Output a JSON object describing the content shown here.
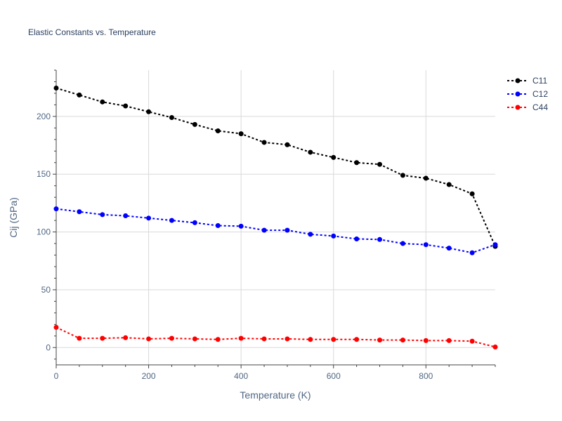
{
  "chart_data": {
    "type": "line",
    "title": "Elastic Constants vs. Temperature",
    "xlabel": "Temperature (K)",
    "ylabel": "Cij (GPa)",
    "xlim": [
      0,
      950
    ],
    "ylim": [
      -15,
      240
    ],
    "xticks": [
      0,
      200,
      400,
      600,
      800
    ],
    "yticks": [
      0,
      50,
      100,
      150,
      200
    ],
    "grid": true,
    "legend_position": "top-right",
    "x": [
      0,
      50,
      100,
      150,
      200,
      250,
      300,
      350,
      400,
      450,
      500,
      550,
      600,
      650,
      700,
      750,
      800,
      850,
      900,
      950
    ],
    "series": [
      {
        "name": "C11",
        "color": "#000000",
        "values": [
          224.5,
          218.5,
          212.5,
          209,
          204,
          199,
          193,
          187.5,
          185,
          177.5,
          175.5,
          169,
          164.5,
          160,
          158.5,
          149,
          146.5,
          141,
          133,
          87.5
        ]
      },
      {
        "name": "C12",
        "color": "#0000ff",
        "values": [
          120,
          117.5,
          115,
          114,
          112,
          110,
          108,
          105.5,
          105,
          101.5,
          101.5,
          98,
          96.5,
          94,
          93.5,
          90,
          89,
          86,
          82,
          89
        ]
      },
      {
        "name": "C44",
        "color": "#ff0000",
        "values": [
          17.5,
          8,
          8,
          8.5,
          7.5,
          8,
          7.5,
          7,
          8,
          7.5,
          7.5,
          7,
          7,
          7,
          6.5,
          6.5,
          6,
          6,
          5.5,
          0.5
        ]
      }
    ]
  }
}
